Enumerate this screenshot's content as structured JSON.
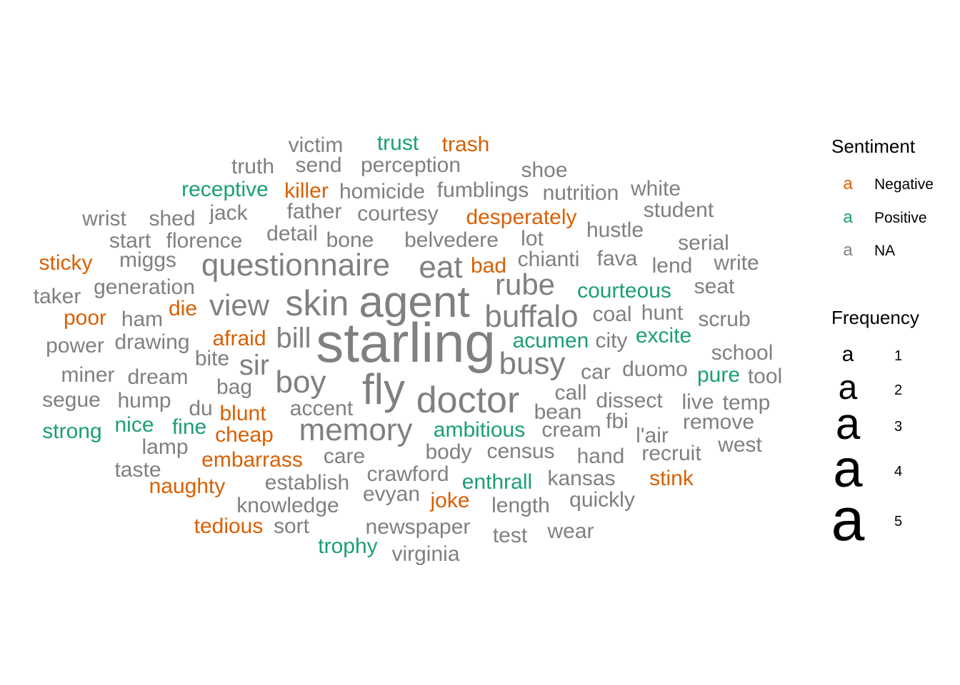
{
  "chart_data": {
    "type": "wordcloud",
    "legend": {
      "sentiment_title": "Sentiment",
      "sentiment_key_glyph": "a",
      "sentiment_levels": [
        {
          "label": "Negative",
          "color": "#D95F02"
        },
        {
          "label": "Positive",
          "color": "#1B9E77"
        },
        {
          "label": "NA",
          "color": "#808080"
        }
      ],
      "frequency_title": "Frequency",
      "frequency_key_glyph": "a",
      "frequency_levels": [
        "1",
        "2",
        "3",
        "4",
        "5"
      ],
      "placement": "right"
    },
    "words": [
      {
        "word": "starling",
        "freq": 5,
        "sentiment": "NA"
      },
      {
        "word": "agent",
        "freq": 4,
        "sentiment": "NA"
      },
      {
        "word": "fly",
        "freq": 4,
        "sentiment": "NA"
      },
      {
        "word": "doctor",
        "freq": 4,
        "sentiment": "NA"
      },
      {
        "word": "skin",
        "freq": 3,
        "sentiment": "NA"
      },
      {
        "word": "questionnaire",
        "freq": 3,
        "sentiment": "NA"
      },
      {
        "word": "memory",
        "freq": 3,
        "sentiment": "NA"
      },
      {
        "word": "buffalo",
        "freq": 3,
        "sentiment": "NA"
      },
      {
        "word": "rube",
        "freq": 3,
        "sentiment": "NA"
      },
      {
        "word": "busy",
        "freq": 3,
        "sentiment": "NA"
      },
      {
        "word": "boy",
        "freq": 3,
        "sentiment": "NA"
      },
      {
        "word": "eat",
        "freq": 3,
        "sentiment": "NA"
      },
      {
        "word": "view",
        "freq": 3,
        "sentiment": "NA"
      },
      {
        "word": "sir",
        "freq": 3,
        "sentiment": "NA"
      },
      {
        "word": "bill",
        "freq": 3,
        "sentiment": "NA"
      },
      {
        "word": "victim",
        "freq": 1,
        "sentiment": "NA"
      },
      {
        "word": "trust",
        "freq": 1,
        "sentiment": "Positive"
      },
      {
        "word": "trash",
        "freq": 1,
        "sentiment": "Negative"
      },
      {
        "word": "truth",
        "freq": 1,
        "sentiment": "NA"
      },
      {
        "word": "send",
        "freq": 1,
        "sentiment": "NA"
      },
      {
        "word": "perception",
        "freq": 1,
        "sentiment": "NA"
      },
      {
        "word": "shoe",
        "freq": 1,
        "sentiment": "NA"
      },
      {
        "word": "receptive",
        "freq": 1,
        "sentiment": "Positive"
      },
      {
        "word": "killer",
        "freq": 1,
        "sentiment": "Negative"
      },
      {
        "word": "homicide",
        "freq": 1,
        "sentiment": "NA"
      },
      {
        "word": "fumblings",
        "freq": 1,
        "sentiment": "NA"
      },
      {
        "word": "nutrition",
        "freq": 1,
        "sentiment": "NA"
      },
      {
        "word": "white",
        "freq": 1,
        "sentiment": "NA"
      },
      {
        "word": "wrist",
        "freq": 1,
        "sentiment": "NA"
      },
      {
        "word": "shed",
        "freq": 1,
        "sentiment": "NA"
      },
      {
        "word": "jack",
        "freq": 1,
        "sentiment": "NA"
      },
      {
        "word": "father",
        "freq": 1,
        "sentiment": "NA"
      },
      {
        "word": "courtesy",
        "freq": 1,
        "sentiment": "NA"
      },
      {
        "word": "desperately",
        "freq": 1,
        "sentiment": "Negative"
      },
      {
        "word": "student",
        "freq": 1,
        "sentiment": "NA"
      },
      {
        "word": "start",
        "freq": 1,
        "sentiment": "NA"
      },
      {
        "word": "florence",
        "freq": 1,
        "sentiment": "NA"
      },
      {
        "word": "detail",
        "freq": 1,
        "sentiment": "NA"
      },
      {
        "word": "bone",
        "freq": 1,
        "sentiment": "NA"
      },
      {
        "word": "belvedere",
        "freq": 1,
        "sentiment": "NA"
      },
      {
        "word": "lot",
        "freq": 1,
        "sentiment": "NA"
      },
      {
        "word": "hustle",
        "freq": 1,
        "sentiment": "NA"
      },
      {
        "word": "serial",
        "freq": 1,
        "sentiment": "NA"
      },
      {
        "word": "sticky",
        "freq": 1,
        "sentiment": "Negative"
      },
      {
        "word": "miggs",
        "freq": 1,
        "sentiment": "NA"
      },
      {
        "word": "bad",
        "freq": 1,
        "sentiment": "Negative"
      },
      {
        "word": "chianti",
        "freq": 1,
        "sentiment": "NA"
      },
      {
        "word": "fava",
        "freq": 1,
        "sentiment": "NA"
      },
      {
        "word": "lend",
        "freq": 1,
        "sentiment": "NA"
      },
      {
        "word": "write",
        "freq": 1,
        "sentiment": "NA"
      },
      {
        "word": "taker",
        "freq": 1,
        "sentiment": "NA"
      },
      {
        "word": "generation",
        "freq": 1,
        "sentiment": "NA"
      },
      {
        "word": "courteous",
        "freq": 1,
        "sentiment": "Positive"
      },
      {
        "word": "seat",
        "freq": 1,
        "sentiment": "NA"
      },
      {
        "word": "poor",
        "freq": 1,
        "sentiment": "Negative"
      },
      {
        "word": "ham",
        "freq": 1,
        "sentiment": "NA"
      },
      {
        "word": "die",
        "freq": 1,
        "sentiment": "Negative"
      },
      {
        "word": "coal",
        "freq": 1,
        "sentiment": "NA"
      },
      {
        "word": "hunt",
        "freq": 1,
        "sentiment": "NA"
      },
      {
        "word": "scrub",
        "freq": 1,
        "sentiment": "NA"
      },
      {
        "word": "power",
        "freq": 1,
        "sentiment": "NA"
      },
      {
        "word": "drawing",
        "freq": 1,
        "sentiment": "NA"
      },
      {
        "word": "afraid",
        "freq": 1,
        "sentiment": "Negative"
      },
      {
        "word": "acumen",
        "freq": 1,
        "sentiment": "Positive"
      },
      {
        "word": "city",
        "freq": 1,
        "sentiment": "NA"
      },
      {
        "word": "excite",
        "freq": 1,
        "sentiment": "Positive"
      },
      {
        "word": "school",
        "freq": 1,
        "sentiment": "NA"
      },
      {
        "word": "bite",
        "freq": 1,
        "sentiment": "NA"
      },
      {
        "word": "miner",
        "freq": 1,
        "sentiment": "NA"
      },
      {
        "word": "dream",
        "freq": 1,
        "sentiment": "NA"
      },
      {
        "word": "bag",
        "freq": 1,
        "sentiment": "NA"
      },
      {
        "word": "car",
        "freq": 1,
        "sentiment": "NA"
      },
      {
        "word": "duomo",
        "freq": 1,
        "sentiment": "NA"
      },
      {
        "word": "pure",
        "freq": 1,
        "sentiment": "Positive"
      },
      {
        "word": "tool",
        "freq": 1,
        "sentiment": "NA"
      },
      {
        "word": "segue",
        "freq": 1,
        "sentiment": "NA"
      },
      {
        "word": "hump",
        "freq": 1,
        "sentiment": "NA"
      },
      {
        "word": "du",
        "freq": 1,
        "sentiment": "NA"
      },
      {
        "word": "blunt",
        "freq": 1,
        "sentiment": "Negative"
      },
      {
        "word": "accent",
        "freq": 1,
        "sentiment": "NA"
      },
      {
        "word": "call",
        "freq": 1,
        "sentiment": "NA"
      },
      {
        "word": "dissect",
        "freq": 1,
        "sentiment": "NA"
      },
      {
        "word": "live",
        "freq": 1,
        "sentiment": "NA"
      },
      {
        "word": "temp",
        "freq": 1,
        "sentiment": "NA"
      },
      {
        "word": "bean",
        "freq": 1,
        "sentiment": "NA"
      },
      {
        "word": "fbi",
        "freq": 1,
        "sentiment": "NA"
      },
      {
        "word": "remove",
        "freq": 1,
        "sentiment": "NA"
      },
      {
        "word": "strong",
        "freq": 1,
        "sentiment": "Positive"
      },
      {
        "word": "nice",
        "freq": 1,
        "sentiment": "Positive"
      },
      {
        "word": "fine",
        "freq": 1,
        "sentiment": "Positive"
      },
      {
        "word": "cheap",
        "freq": 1,
        "sentiment": "Negative"
      },
      {
        "word": "ambitious",
        "freq": 1,
        "sentiment": "Positive"
      },
      {
        "word": "cream",
        "freq": 1,
        "sentiment": "NA"
      },
      {
        "word": "l'air",
        "freq": 1,
        "sentiment": "NA"
      },
      {
        "word": "lamp",
        "freq": 1,
        "sentiment": "NA"
      },
      {
        "word": "body",
        "freq": 1,
        "sentiment": "NA"
      },
      {
        "word": "census",
        "freq": 1,
        "sentiment": "NA"
      },
      {
        "word": "west",
        "freq": 1,
        "sentiment": "NA"
      },
      {
        "word": "embarrass",
        "freq": 1,
        "sentiment": "Negative"
      },
      {
        "word": "care",
        "freq": 1,
        "sentiment": "NA"
      },
      {
        "word": "hand",
        "freq": 1,
        "sentiment": "NA"
      },
      {
        "word": "recruit",
        "freq": 1,
        "sentiment": "NA"
      },
      {
        "word": "taste",
        "freq": 1,
        "sentiment": "NA"
      },
      {
        "word": "crawford",
        "freq": 1,
        "sentiment": "NA"
      },
      {
        "word": "kansas",
        "freq": 1,
        "sentiment": "NA"
      },
      {
        "word": "stink",
        "freq": 1,
        "sentiment": "Negative"
      },
      {
        "word": "naughty",
        "freq": 1,
        "sentiment": "Negative"
      },
      {
        "word": "establish",
        "freq": 1,
        "sentiment": "NA"
      },
      {
        "word": "enthrall",
        "freq": 1,
        "sentiment": "Positive"
      },
      {
        "word": "evyan",
        "freq": 1,
        "sentiment": "NA"
      },
      {
        "word": "joke",
        "freq": 1,
        "sentiment": "Negative"
      },
      {
        "word": "quickly",
        "freq": 1,
        "sentiment": "NA"
      },
      {
        "word": "knowledge",
        "freq": 1,
        "sentiment": "NA"
      },
      {
        "word": "length",
        "freq": 1,
        "sentiment": "NA"
      },
      {
        "word": "tedious",
        "freq": 1,
        "sentiment": "Negative"
      },
      {
        "word": "sort",
        "freq": 1,
        "sentiment": "NA"
      },
      {
        "word": "newspaper",
        "freq": 1,
        "sentiment": "NA"
      },
      {
        "word": "wear",
        "freq": 1,
        "sentiment": "NA"
      },
      {
        "word": "test",
        "freq": 1,
        "sentiment": "NA"
      },
      {
        "word": "trophy",
        "freq": 1,
        "sentiment": "Positive"
      },
      {
        "word": "virginia",
        "freq": 1,
        "sentiment": "NA"
      }
    ]
  }
}
